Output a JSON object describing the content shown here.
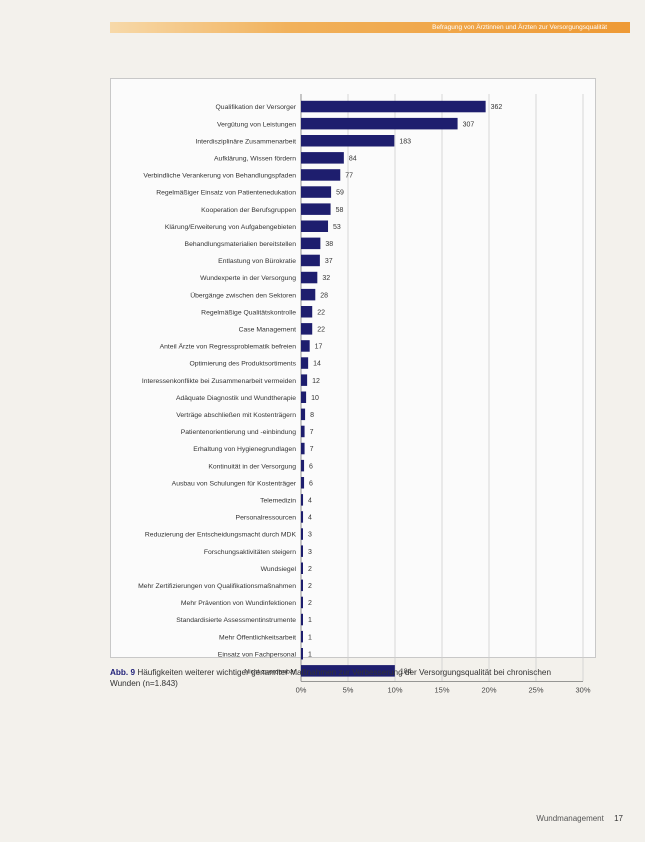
{
  "header": {
    "text": "Befragung von Ärztinnen und Ärzten zur Versorgungsqualität"
  },
  "caption": {
    "label": "Abb. 9",
    "text": "Häufigkeiten weiterer wichtiger genannter Maßnahmen zur Verbesserung der Versorgungsqualität bei chronischen Wunden (n=1.843)"
  },
  "footer": {
    "journal": "Wundmanagement",
    "page": "17"
  },
  "colors": {
    "bar": "#1e1e6e",
    "grid": "#cfcfcf"
  },
  "chart_data": {
    "type": "bar",
    "orientation": "horizontal",
    "title": "",
    "xlabel": "",
    "ylabel": "",
    "x_ticks": [
      "0%",
      "5%",
      "10%",
      "15%",
      "20%",
      "25%",
      "30%"
    ],
    "total_n": 1843,
    "categories": [
      "Qualifikation der Versorger",
      "Vergütung von Leistungen",
      "Interdisziplinäre Zusammenarbeit",
      "Aufklärung, Wissen fördern",
      "Verbindliche Verankerung von Behandlungspfaden",
      "Regelmäßiger Einsatz von Patientenedukation",
      "Kooperation der Berufsgruppen",
      "Klärung/Erweiterung von Aufgabengebieten",
      "Behandlungsmaterialien bereitstellen",
      "Entlastung von Bürokratie",
      "Wundexperte in der Versorgung",
      "Übergänge zwischen den Sektoren",
      "Regelmäßige Qualitätskontrolle",
      "Case Management",
      "Anteil Ärzte von Regressproblematik befreien",
      "Optimierung des Produktsortiments",
      "Interessenkonflikte bei Zusammenarbeit vermeiden",
      "Adäquate Diagnostik und Wundtherapie",
      "Verträge abschließen mit Kostenträgern",
      "Patientenorientierung und -einbindung",
      "Erhaltung von Hygienegrundlagen",
      "Kontinuität in der Versorgung",
      "Ausbau von Schulungen für Kostenträger",
      "Telemedizin",
      "Personalressourcen",
      "Reduzierung der Entscheidungsmacht durch MDK",
      "Forschungsaktivitäten steigern",
      "Wundsiegel",
      "Mehr Zertifizierungen von Qualifikationsmaßnahmen",
      "Mehr Prävention von Wundinfektionen",
      "Standardisierte Assessmentinstrumente",
      "Mehr Öffentlichkeitsarbeit",
      "Einsatz von Fachpersonal",
      "Nicht zuordenbar"
    ],
    "values": [
      362,
      307,
      183,
      84,
      77,
      59,
      58,
      53,
      38,
      37,
      32,
      28,
      22,
      22,
      17,
      14,
      12,
      10,
      8,
      7,
      7,
      6,
      6,
      4,
      4,
      3,
      3,
      2,
      2,
      2,
      1,
      1,
      1,
      184
    ],
    "xlim_percent": [
      0,
      30
    ]
  }
}
